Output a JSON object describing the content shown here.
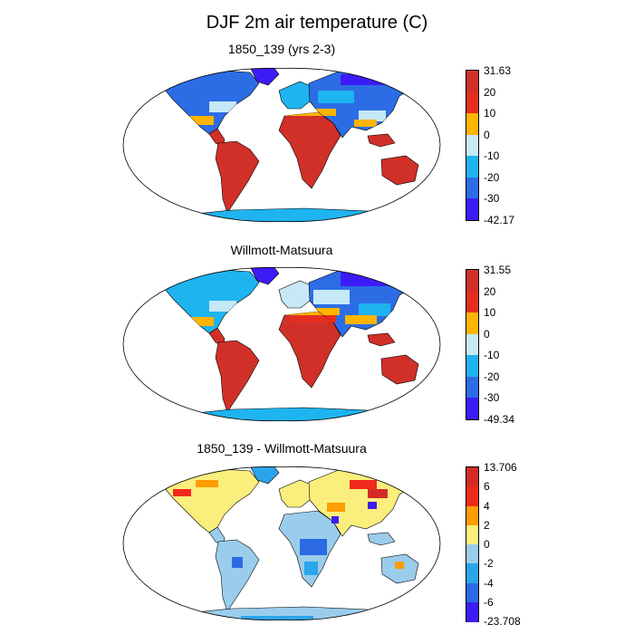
{
  "chart_data": {
    "type": "heatmap",
    "title": "DJF 2m air temperature (C)",
    "panels": [
      {
        "name": "model",
        "subtitle": "1850_139 (yrs 2-3)",
        "colorbar": {
          "labels": [
            "31.63",
            "20",
            "10",
            "0",
            "-10",
            "-20",
            "-30",
            "-42.17"
          ],
          "colors": [
            "#d03028",
            "#e62e1e",
            "#ffb400",
            "#c6e8f7",
            "#1eb4f0",
            "#2c6de6",
            "#3c1cf6"
          ]
        }
      },
      {
        "name": "observed",
        "subtitle": "Willmott-Matsuura",
        "colorbar": {
          "labels": [
            "31.55",
            "20",
            "10",
            "0",
            "-10",
            "-20",
            "-30",
            "-49.34"
          ],
          "colors": [
            "#d03028",
            "#e62e1e",
            "#ffb400",
            "#c6e8f7",
            "#1eb4f0",
            "#2c6de6",
            "#3c1cf6"
          ]
        }
      },
      {
        "name": "difference",
        "subtitle": "1850_139 - Willmott-Matsuura",
        "colorbar": {
          "labels": [
            "13.706",
            "6",
            "4",
            "2",
            "0",
            "-2",
            "-4",
            "-6",
            "-23.708"
          ],
          "colors": [
            "#d52b26",
            "#f1281c",
            "#ff9c00",
            "#faee7c",
            "#9acdec",
            "#2aa5ea",
            "#2c6ae4",
            "#3c1cf4"
          ]
        }
      }
    ]
  }
}
